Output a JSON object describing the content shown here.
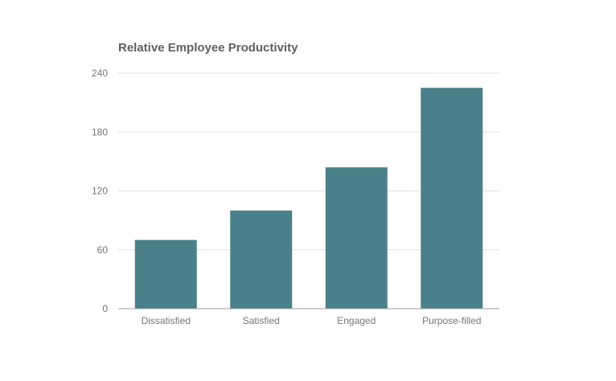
{
  "chart_data": {
    "type": "bar",
    "title": "Relative Employee Productivity",
    "xlabel": "",
    "ylabel": "",
    "categories": [
      "Dissatisfied",
      "Satisfied",
      "Engaged",
      "Purpose-filled"
    ],
    "values": [
      70,
      100,
      144,
      225
    ],
    "ylim": [
      0,
      240
    ],
    "yticks": [
      "0",
      "60",
      "120",
      "180",
      "240"
    ],
    "grid": true,
    "legend": "none",
    "bar_color": "#4a808a"
  }
}
